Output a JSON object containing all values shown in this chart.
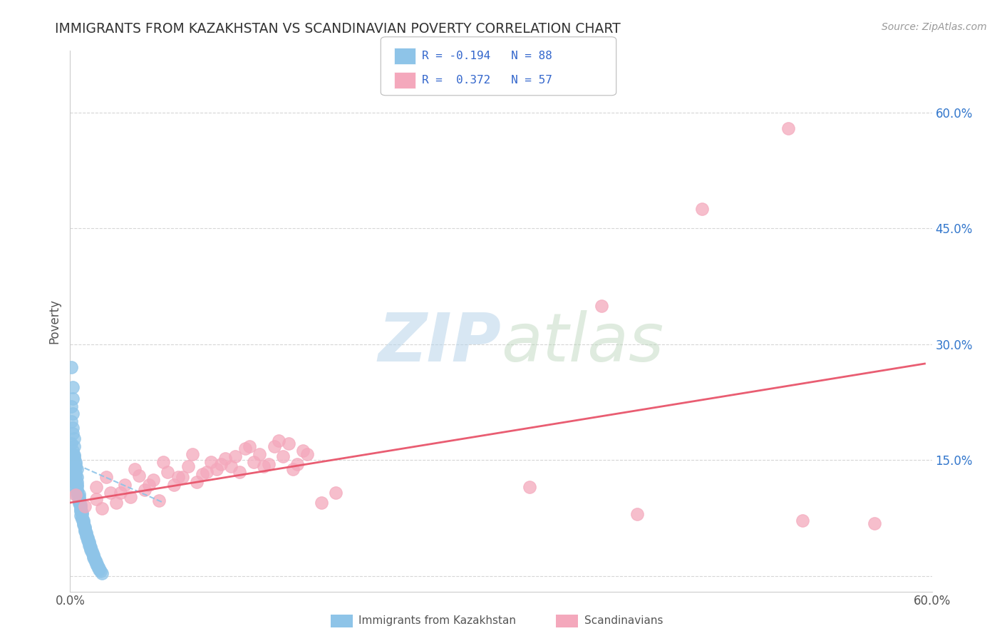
{
  "title": "IMMIGRANTS FROM KAZAKHSTAN VS SCANDINAVIAN POVERTY CORRELATION CHART",
  "source": "Source: ZipAtlas.com",
  "ylabel": "Poverty",
  "x_lim": [
    0.0,
    0.6
  ],
  "y_lim": [
    -0.02,
    0.68
  ],
  "color_blue": "#8ec4e8",
  "color_pink": "#f4a8bc",
  "line_blue": "#8ec4e8",
  "line_pink": "#e8546a",
  "background_color": "#ffffff",
  "grid_color": "#cccccc",
  "blue_dots": [
    [
      0.001,
      0.27
    ],
    [
      0.002,
      0.245
    ],
    [
      0.002,
      0.23
    ],
    [
      0.001,
      0.22
    ],
    [
      0.002,
      0.21
    ],
    [
      0.001,
      0.2
    ],
    [
      0.002,
      0.192
    ],
    [
      0.002,
      0.185
    ],
    [
      0.003,
      0.178
    ],
    [
      0.001,
      0.172
    ],
    [
      0.003,
      0.168
    ],
    [
      0.002,
      0.162
    ],
    [
      0.003,
      0.157
    ],
    [
      0.003,
      0.152
    ],
    [
      0.002,
      0.148
    ],
    [
      0.004,
      0.145
    ],
    [
      0.003,
      0.142
    ],
    [
      0.004,
      0.14
    ],
    [
      0.003,
      0.137
    ],
    [
      0.004,
      0.134
    ],
    [
      0.004,
      0.132
    ],
    [
      0.004,
      0.13
    ],
    [
      0.005,
      0.128
    ],
    [
      0.004,
      0.126
    ],
    [
      0.004,
      0.124
    ],
    [
      0.005,
      0.122
    ],
    [
      0.004,
      0.12
    ],
    [
      0.005,
      0.118
    ],
    [
      0.005,
      0.116
    ],
    [
      0.004,
      0.114
    ],
    [
      0.005,
      0.112
    ],
    [
      0.005,
      0.11
    ],
    [
      0.005,
      0.108
    ],
    [
      0.006,
      0.106
    ],
    [
      0.005,
      0.104
    ],
    [
      0.006,
      0.102
    ],
    [
      0.006,
      0.1
    ],
    [
      0.006,
      0.098
    ],
    [
      0.006,
      0.096
    ],
    [
      0.006,
      0.094
    ],
    [
      0.007,
      0.092
    ],
    [
      0.007,
      0.09
    ],
    [
      0.007,
      0.088
    ],
    [
      0.007,
      0.086
    ],
    [
      0.007,
      0.084
    ],
    [
      0.008,
      0.082
    ],
    [
      0.008,
      0.08
    ],
    [
      0.007,
      0.078
    ],
    [
      0.008,
      0.076
    ],
    [
      0.008,
      0.074
    ],
    [
      0.009,
      0.072
    ],
    [
      0.009,
      0.07
    ],
    [
      0.009,
      0.068
    ],
    [
      0.009,
      0.066
    ],
    [
      0.01,
      0.064
    ],
    [
      0.01,
      0.062
    ],
    [
      0.01,
      0.06
    ],
    [
      0.01,
      0.058
    ],
    [
      0.011,
      0.056
    ],
    [
      0.011,
      0.054
    ],
    [
      0.011,
      0.052
    ],
    [
      0.012,
      0.05
    ],
    [
      0.012,
      0.048
    ],
    [
      0.012,
      0.046
    ],
    [
      0.013,
      0.044
    ],
    [
      0.013,
      0.042
    ],
    [
      0.013,
      0.04
    ],
    [
      0.014,
      0.038
    ],
    [
      0.014,
      0.036
    ],
    [
      0.014,
      0.034
    ],
    [
      0.015,
      0.032
    ],
    [
      0.015,
      0.03
    ],
    [
      0.016,
      0.028
    ],
    [
      0.016,
      0.026
    ],
    [
      0.016,
      0.024
    ],
    [
      0.017,
      0.022
    ],
    [
      0.017,
      0.02
    ],
    [
      0.018,
      0.018
    ],
    [
      0.018,
      0.016
    ],
    [
      0.019,
      0.014
    ],
    [
      0.019,
      0.012
    ],
    [
      0.02,
      0.01
    ],
    [
      0.02,
      0.008
    ],
    [
      0.021,
      0.006
    ],
    [
      0.022,
      0.004
    ],
    [
      0.003,
      0.155
    ],
    [
      0.004,
      0.148
    ],
    [
      0.005,
      0.138
    ]
  ],
  "pink_dots": [
    [
      0.004,
      0.105
    ],
    [
      0.01,
      0.09
    ],
    [
      0.018,
      0.115
    ],
    [
      0.022,
      0.088
    ],
    [
      0.028,
      0.108
    ],
    [
      0.032,
      0.095
    ],
    [
      0.038,
      0.118
    ],
    [
      0.042,
      0.102
    ],
    [
      0.048,
      0.13
    ],
    [
      0.052,
      0.112
    ],
    [
      0.058,
      0.125
    ],
    [
      0.062,
      0.098
    ],
    [
      0.068,
      0.135
    ],
    [
      0.072,
      0.118
    ],
    [
      0.078,
      0.128
    ],
    [
      0.082,
      0.142
    ],
    [
      0.088,
      0.122
    ],
    [
      0.092,
      0.132
    ],
    [
      0.098,
      0.148
    ],
    [
      0.102,
      0.138
    ],
    [
      0.108,
      0.152
    ],
    [
      0.112,
      0.142
    ],
    [
      0.118,
      0.135
    ],
    [
      0.122,
      0.165
    ],
    [
      0.128,
      0.148
    ],
    [
      0.132,
      0.158
    ],
    [
      0.138,
      0.145
    ],
    [
      0.142,
      0.168
    ],
    [
      0.148,
      0.155
    ],
    [
      0.152,
      0.172
    ],
    [
      0.158,
      0.145
    ],
    [
      0.162,
      0.162
    ],
    [
      0.018,
      0.1
    ],
    [
      0.025,
      0.128
    ],
    [
      0.035,
      0.108
    ],
    [
      0.045,
      0.138
    ],
    [
      0.055,
      0.118
    ],
    [
      0.065,
      0.148
    ],
    [
      0.075,
      0.128
    ],
    [
      0.085,
      0.158
    ],
    [
      0.095,
      0.135
    ],
    [
      0.105,
      0.145
    ],
    [
      0.115,
      0.155
    ],
    [
      0.125,
      0.168
    ],
    [
      0.135,
      0.142
    ],
    [
      0.145,
      0.175
    ],
    [
      0.155,
      0.138
    ],
    [
      0.165,
      0.158
    ],
    [
      0.175,
      0.095
    ],
    [
      0.185,
      0.108
    ],
    [
      0.32,
      0.115
    ],
    [
      0.37,
      0.35
    ],
    [
      0.44,
      0.475
    ],
    [
      0.5,
      0.58
    ],
    [
      0.56,
      0.068
    ],
    [
      0.395,
      0.08
    ],
    [
      0.51,
      0.072
    ]
  ],
  "blue_line_x": [
    0.0,
    0.065
  ],
  "blue_line_y": [
    0.148,
    0.095
  ],
  "pink_line_x": [
    0.0,
    0.595
  ],
  "pink_line_y": [
    0.095,
    0.275
  ]
}
